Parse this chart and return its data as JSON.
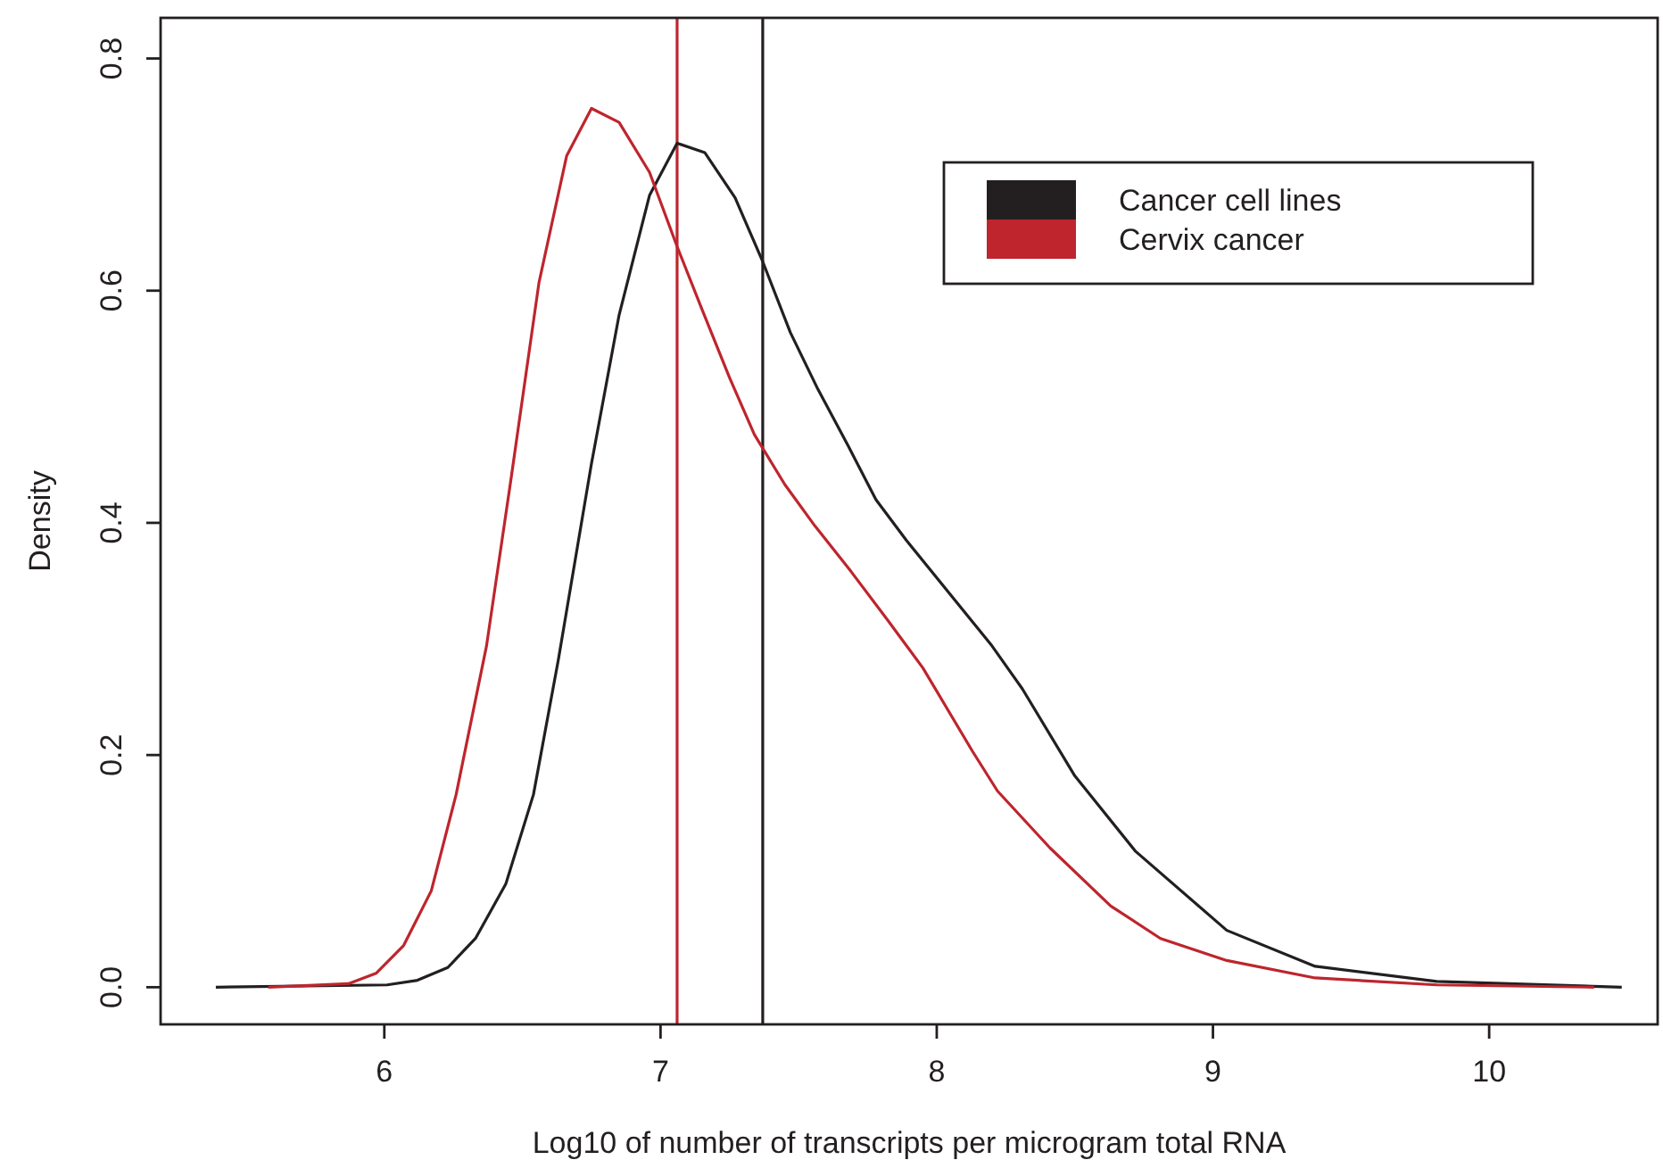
{
  "chart_data": {
    "type": "line",
    "xlabel": "Log10 of number of transcripts per microgram total RNA",
    "ylabel": "Density",
    "xlim": [
      5.19,
      10.61
    ],
    "ylim": [
      -0.032,
      0.835
    ],
    "xticks": [
      6,
      7,
      8,
      9,
      10
    ],
    "yticks": [
      {
        "value": 0,
        "label": "0.0"
      },
      {
        "value": 0.2,
        "label": "0.2"
      },
      {
        "value": 0.4,
        "label": "0.4"
      },
      {
        "value": 0.6,
        "label": "0.6"
      },
      {
        "value": 0.8,
        "label": "0.8"
      }
    ],
    "grid": false,
    "legend": "top right",
    "marker": "none",
    "line_style": "solid",
    "series": [
      {
        "name": "Cancer cell lines",
        "color": "#231f20",
        "x": [
          5.39,
          6.01,
          6.12,
          6.23,
          6.33,
          6.44,
          6.54,
          6.63,
          6.75,
          6.85,
          6.96,
          7.06,
          7.16,
          7.27,
          7.37,
          7.47,
          7.57,
          7.68,
          7.78,
          7.89,
          8.2,
          8.31,
          8.5,
          8.72,
          9.05,
          9.37,
          9.81,
          10.48
        ],
        "values": [
          0,
          0.002,
          0.006,
          0.017,
          0.042,
          0.089,
          0.166,
          0.282,
          0.451,
          0.579,
          0.682,
          0.727,
          0.719,
          0.68,
          0.625,
          0.564,
          0.515,
          0.466,
          0.42,
          0.385,
          0.294,
          0.257,
          0.182,
          0.117,
          0.049,
          0.018,
          0.005,
          0
        ]
      },
      {
        "name": "Cervix cancer",
        "color": "#be252d",
        "x": [
          5.58,
          5.87,
          5.97,
          6.07,
          6.17,
          6.26,
          6.37,
          6.46,
          6.56,
          6.66,
          6.75,
          6.85,
          6.96,
          7.06,
          7.15,
          7.25,
          7.34,
          7.45,
          7.56,
          7.69,
          7.82,
          7.95,
          8.13,
          8.22,
          8.41,
          8.63,
          8.81,
          9.05,
          9.37,
          9.81,
          10.38
        ],
        "values": [
          0,
          0.003,
          0.012,
          0.036,
          0.083,
          0.166,
          0.294,
          0.44,
          0.607,
          0.716,
          0.757,
          0.745,
          0.702,
          0.638,
          0.584,
          0.525,
          0.476,
          0.433,
          0.397,
          0.358,
          0.317,
          0.275,
          0.203,
          0.169,
          0.12,
          0.07,
          0.042,
          0.023,
          0.008,
          0.002,
          0
        ]
      }
    ],
    "ref_lines": [
      {
        "axis": "x",
        "value": 7.06,
        "color": "#be252d"
      },
      {
        "axis": "x",
        "value": 7.37,
        "color": "#231f20"
      }
    ]
  }
}
